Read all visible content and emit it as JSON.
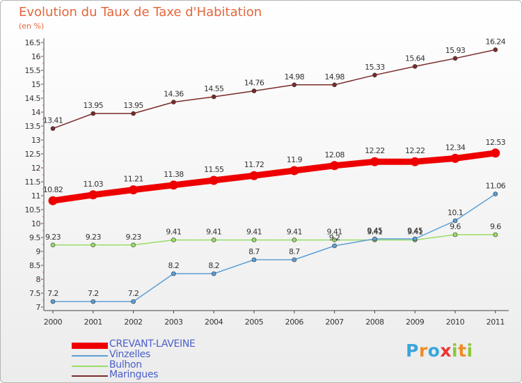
{
  "chart_data": {
    "type": "line",
    "title": "Evolution du Taux de Taxe d'Habitation",
    "subtitle": "(en %)",
    "x": [
      "2000",
      "2001",
      "2002",
      "2003",
      "2004",
      "2005",
      "2006",
      "2007",
      "2008",
      "2009",
      "2010",
      "2011"
    ],
    "yticks": [
      "7",
      "7.5",
      "8",
      "8.5",
      "9",
      "9.5",
      "10",
      "10.5",
      "11",
      "11.5",
      "12",
      "12.5",
      "13",
      "13.5",
      "14",
      "14.5",
      "15",
      "15.5",
      "16",
      "16.5"
    ],
    "ylim": [
      7,
      16.5
    ],
    "grid": false,
    "legend_position": "bottom-left",
    "series": [
      {
        "name": "CREVANT-LAVEINE",
        "color": "#ee0000",
        "values": [
          10.82,
          11.03,
          11.21,
          11.38,
          11.55,
          11.72,
          11.9,
          12.08,
          12.22,
          12.22,
          12.34,
          12.53
        ],
        "labels": [
          "10.82",
          "11.03",
          "11.21",
          "11.38",
          "11.55",
          "11.72",
          "11.9",
          "12.08",
          "12.22",
          "12.22",
          "12.34",
          "12.53"
        ]
      },
      {
        "name": "Vinzelles",
        "color": "#5c9fd6",
        "values": [
          7.2,
          7.2,
          7.2,
          8.2,
          8.2,
          8.7,
          8.7,
          9.2,
          9.45,
          9.45,
          10.1,
          11.06
        ],
        "labels": [
          "7.2",
          "7.2",
          "7.2",
          "8.2",
          "8.2",
          "8.7",
          "8.7",
          "9.2",
          "9.45",
          "9.45",
          "10.1",
          "11.06"
        ]
      },
      {
        "name": "Bulhon",
        "color": "#99dd66",
        "values": [
          9.23,
          9.23,
          9.23,
          9.41,
          9.41,
          9.41,
          9.41,
          9.41,
          9.41,
          9.41,
          9.6,
          9.6
        ],
        "labels": [
          "9.23",
          "9.23",
          "9.23",
          "9.41",
          "9.41",
          "9.41",
          "9.41",
          "9.41",
          "9.41",
          "9.41",
          "9.6",
          "9.6"
        ]
      },
      {
        "name": "Maringues",
        "color": "#7a2a2a",
        "values": [
          13.41,
          13.95,
          13.95,
          14.36,
          14.55,
          14.76,
          14.98,
          14.98,
          15.33,
          15.64,
          15.93,
          16.24
        ],
        "labels": [
          "13.41",
          "13.95",
          "13.95",
          "14.36",
          "14.55",
          "14.76",
          "14.98",
          "14.98",
          "15.33",
          "15.64",
          "15.93",
          "16.24"
        ]
      }
    ]
  },
  "logo": {
    "letters": [
      "P",
      "r",
      "o",
      "x",
      "i",
      "t",
      "i"
    ],
    "colors": [
      "#3aa5dc",
      "#f08c2a",
      "#3aa5dc",
      "#ee3333",
      "#8cc63f",
      "#f08c2a",
      "#8cc63f"
    ]
  }
}
